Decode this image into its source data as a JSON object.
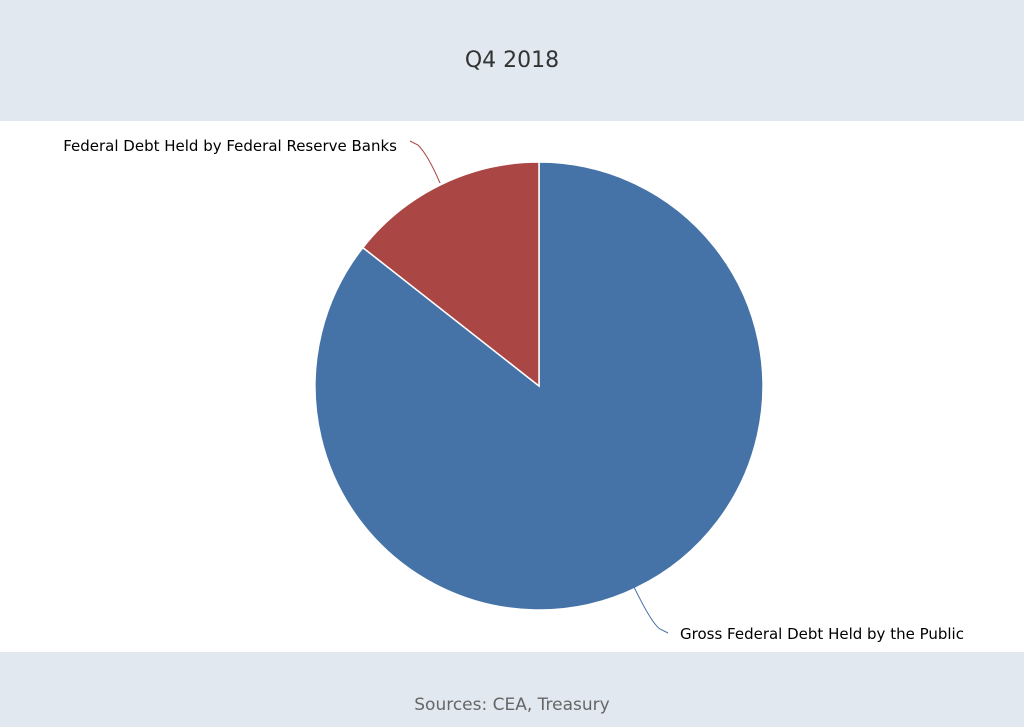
{
  "chart_data": {
    "type": "pie",
    "title": "Q4 2018",
    "source": "Sources: CEA, Treasury",
    "slices": [
      {
        "label": "Gross Federal Debt Held by the Public",
        "value": 85.6,
        "color": "#4572a7"
      },
      {
        "label": "Federal Debt Held by Federal Reserve Banks",
        "value": 14.4,
        "color": "#aa4643"
      }
    ]
  }
}
